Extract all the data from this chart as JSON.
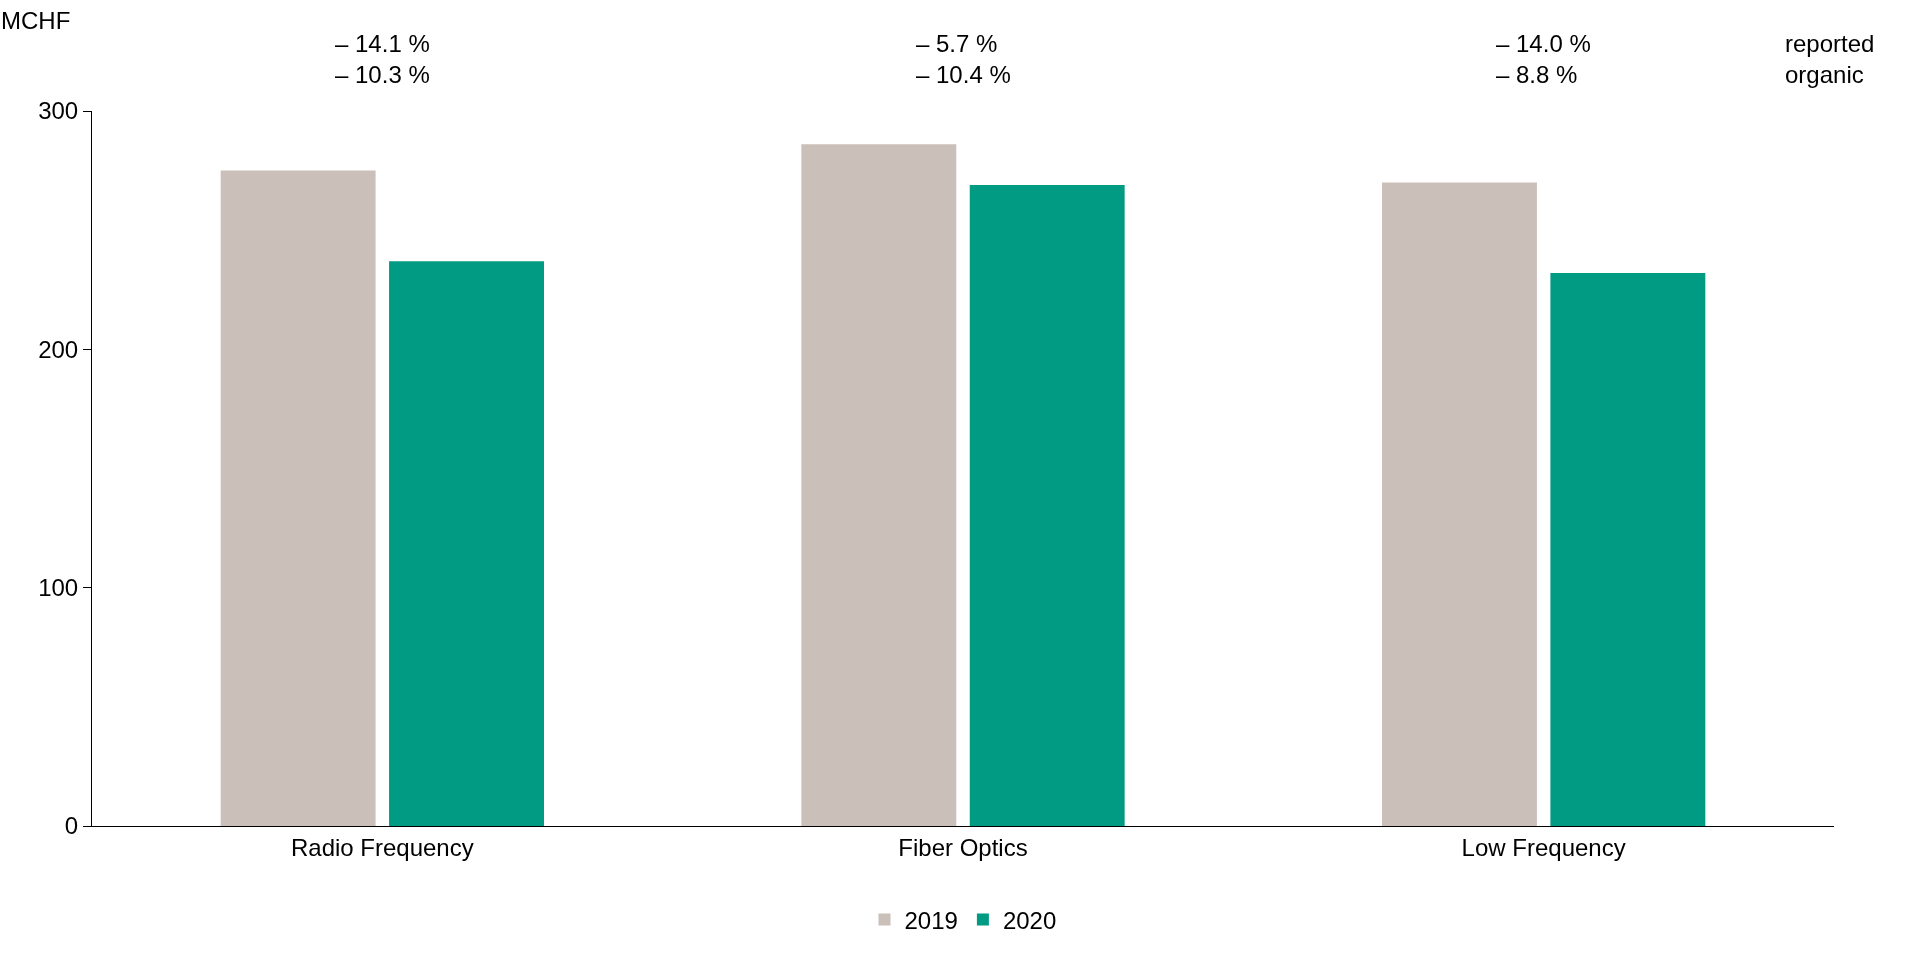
{
  "chart_data": {
    "type": "bar",
    "ylabel": "MCHF",
    "categories": [
      "Radio Frequency",
      "Fiber Optics",
      "Low Frequency"
    ],
    "series": [
      {
        "name": "2019",
        "color": "#cbbfba",
        "values": [
          275,
          286,
          270
        ]
      },
      {
        "name": "2020",
        "color": "#009b82",
        "values": [
          237,
          269,
          232
        ]
      }
    ],
    "ylim": [
      0,
      300
    ],
    "yticks": [
      0,
      100,
      200,
      300
    ],
    "grid": false,
    "legend": "bottom",
    "annotations": [
      "– 14.1 %\n– 10.3 %",
      "– 5.7 %\n– 10.4 %",
      "– 14.0 %\n– 8.8 %",
      "reported\norganic"
    ]
  }
}
